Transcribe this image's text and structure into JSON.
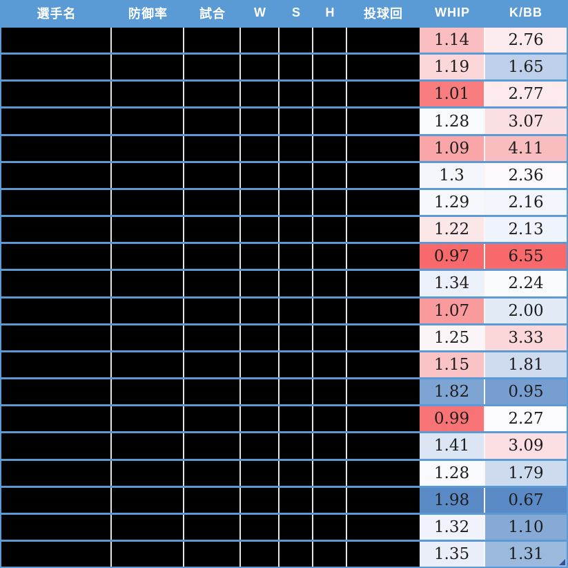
{
  "table": {
    "columns": [
      {
        "key": "player",
        "label": "選手名",
        "redacted": true
      },
      {
        "key": "era",
        "label": "防御率",
        "redacted": true
      },
      {
        "key": "games",
        "label": "試合",
        "redacted": true
      },
      {
        "key": "w",
        "label": "W",
        "redacted": true
      },
      {
        "key": "s",
        "label": "S",
        "redacted": true
      },
      {
        "key": "h",
        "label": "H",
        "redacted": true
      },
      {
        "key": "ip",
        "label": "投球回",
        "redacted": true
      },
      {
        "key": "whip",
        "label": "WHIP",
        "redacted": false
      },
      {
        "key": "kbb",
        "label": "K/BB",
        "redacted": false
      }
    ],
    "rows": [
      {
        "whip": "1.14",
        "kbb": "2.76"
      },
      {
        "whip": "1.19",
        "kbb": "1.65"
      },
      {
        "whip": "1.01",
        "kbb": "2.77"
      },
      {
        "whip": "1.28",
        "kbb": "3.07"
      },
      {
        "whip": "1.09",
        "kbb": "4.11"
      },
      {
        "whip": "1.3",
        "kbb": "2.36"
      },
      {
        "whip": "1.29",
        "kbb": "2.16"
      },
      {
        "whip": "1.22",
        "kbb": "2.13"
      },
      {
        "whip": "0.97",
        "kbb": "6.55"
      },
      {
        "whip": "1.34",
        "kbb": "2.24"
      },
      {
        "whip": "1.07",
        "kbb": "2.00"
      },
      {
        "whip": "1.25",
        "kbb": "3.33"
      },
      {
        "whip": "1.15",
        "kbb": "1.81"
      },
      {
        "whip": "1.82",
        "kbb": "0.95"
      },
      {
        "whip": "0.99",
        "kbb": "2.27"
      },
      {
        "whip": "1.41",
        "kbb": "3.09"
      },
      {
        "whip": "1.28",
        "kbb": "1.79"
      },
      {
        "whip": "1.98",
        "kbb": "0.67"
      },
      {
        "whip": "1.32",
        "kbb": "1.10"
      },
      {
        "whip": "1.35",
        "kbb": "1.31"
      }
    ],
    "color_scales": {
      "whip": {
        "min": {
          "value": 0.97,
          "color": "#F8696B"
        },
        "mid": {
          "value": 1.265,
          "color": "#FCFCFF"
        },
        "max": {
          "value": 1.98,
          "color": "#5A8AC6"
        }
      },
      "kbb": {
        "min": {
          "value": 0.67,
          "color": "#5A8AC6"
        },
        "mid": {
          "value": 2.255,
          "color": "#FCFCFF"
        },
        "max": {
          "value": 6.55,
          "color": "#F8696B"
        }
      }
    },
    "theme": {
      "header_bg": "#5B9BD5",
      "header_text": "#FFFFFF",
      "redacted_fill": "#000000",
      "grid_line": "#E7E7E7",
      "cell_divider": "#FAF5F5",
      "corner_marker": "#2F5597"
    }
  }
}
